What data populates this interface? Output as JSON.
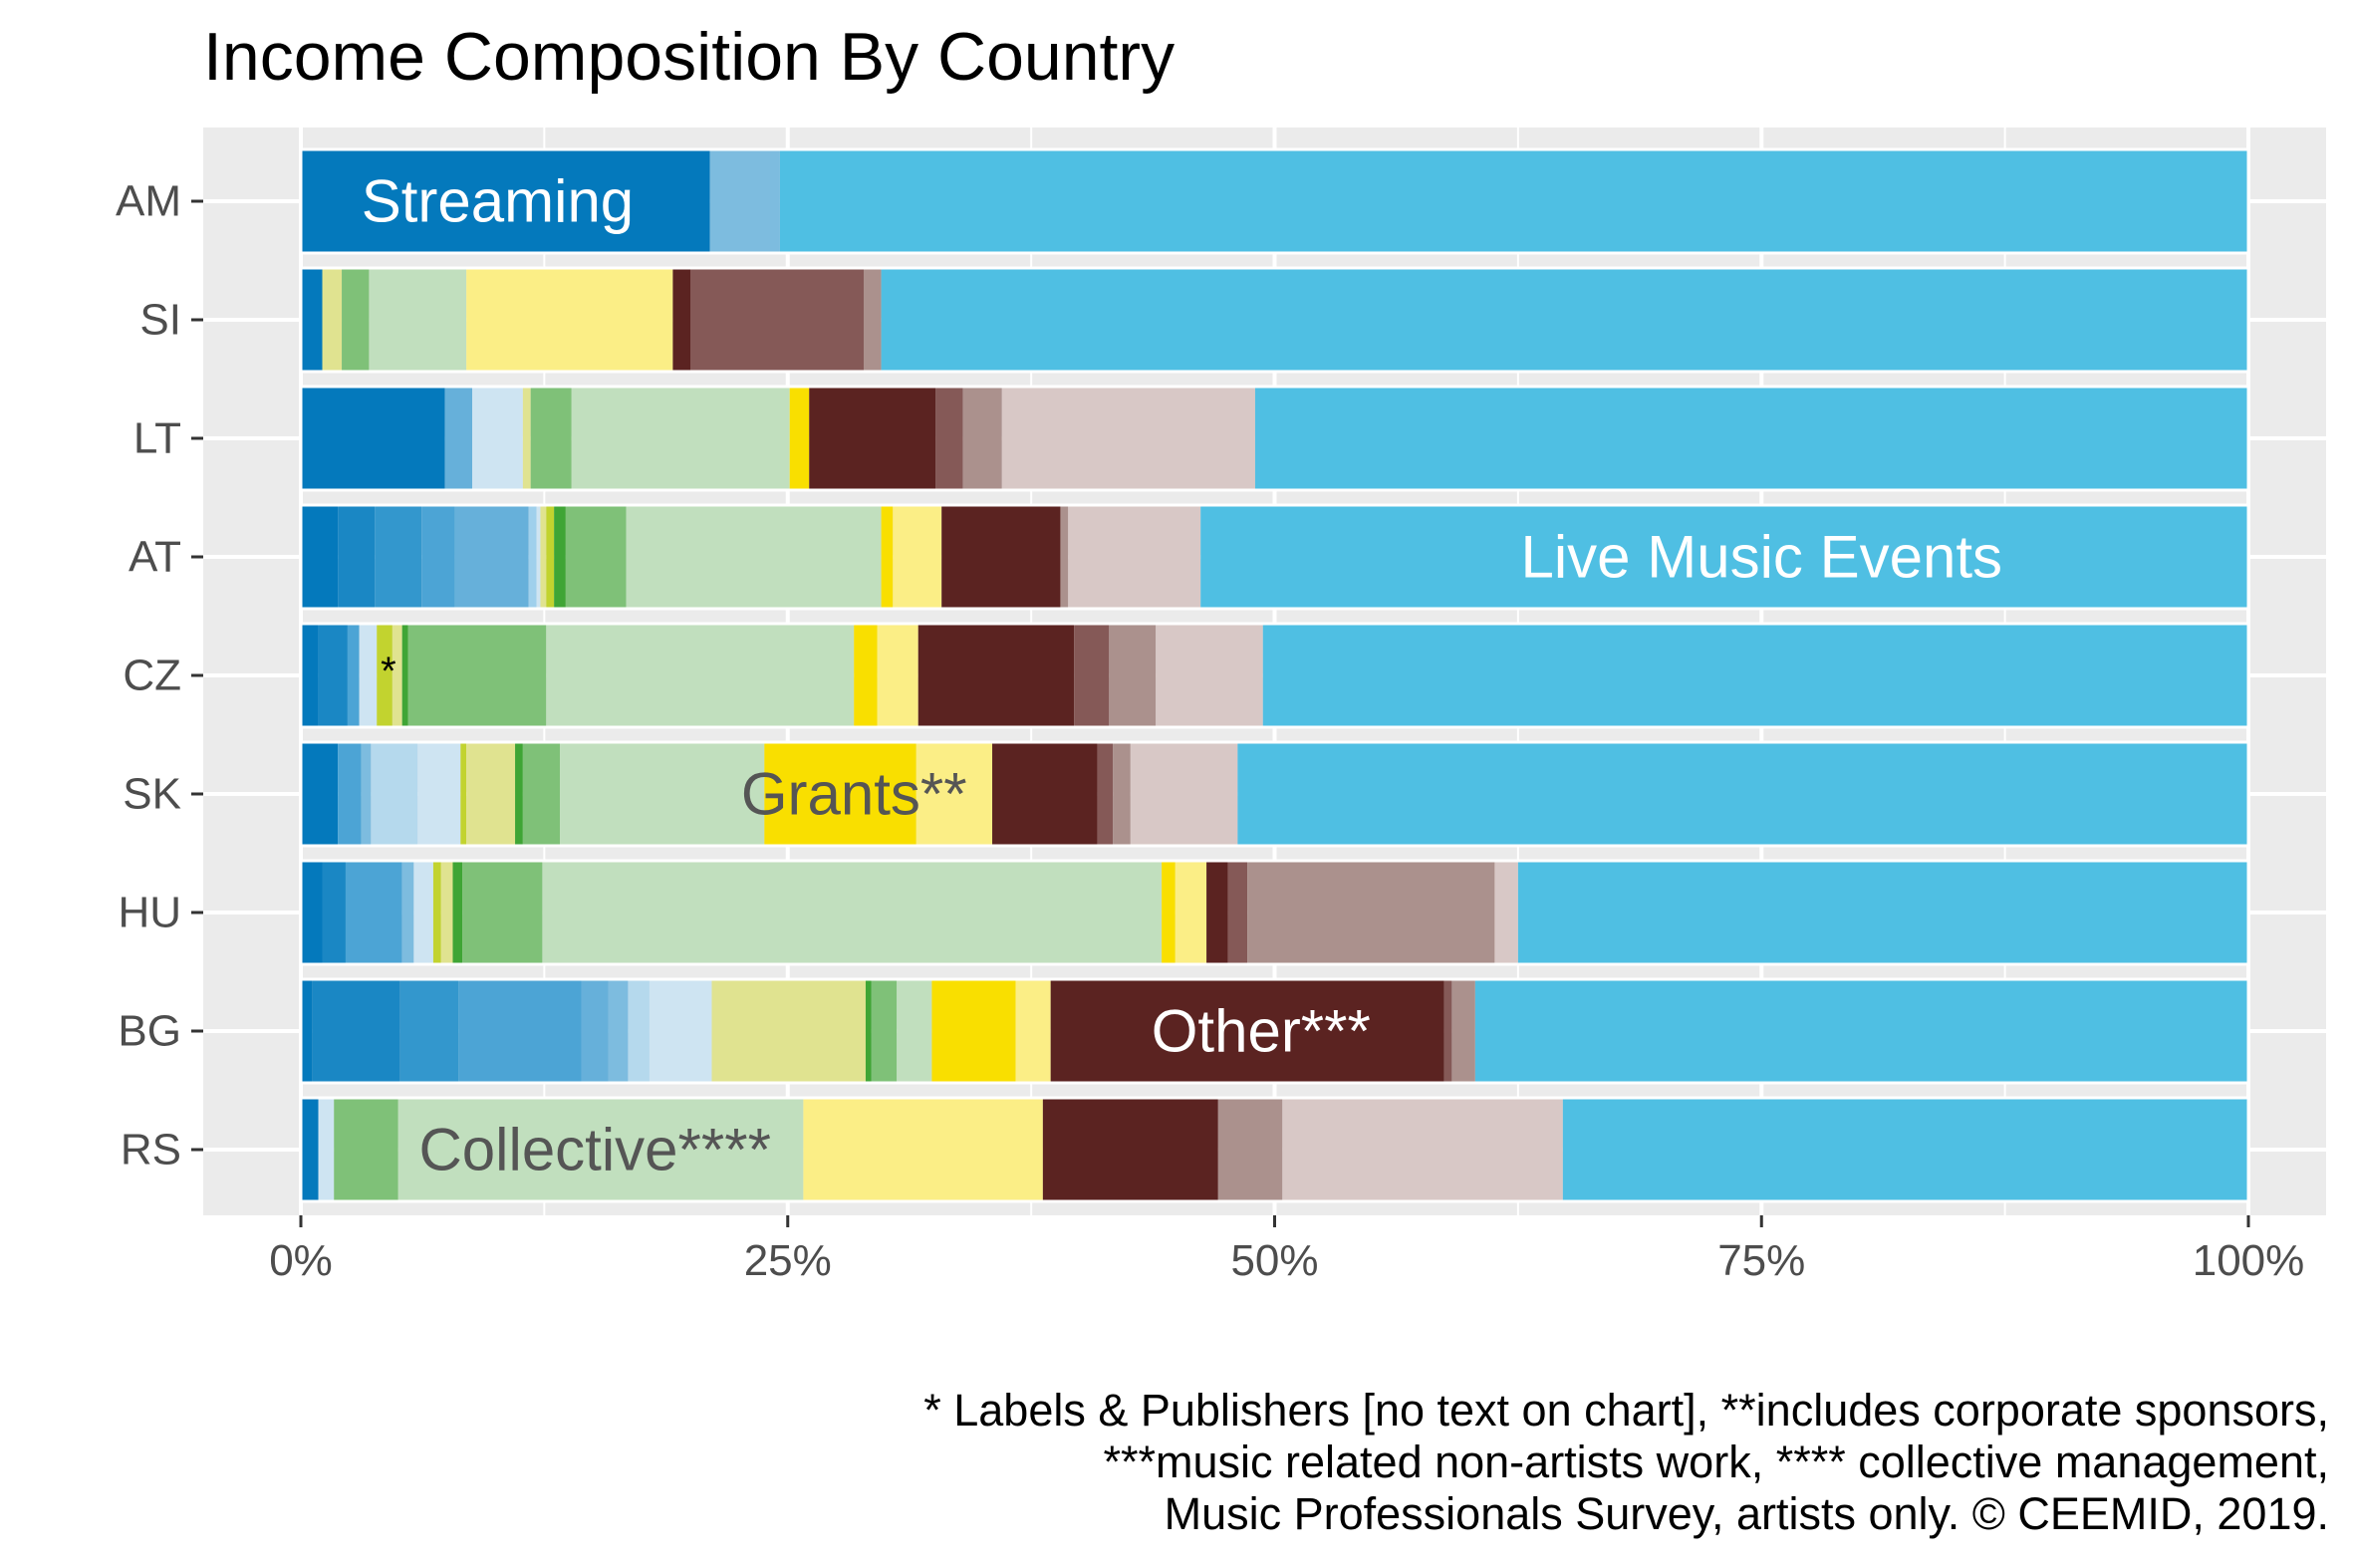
{
  "chart_data": {
    "type": "bar",
    "orientation": "horizontal",
    "stacked": true,
    "normalized": true,
    "title": "Income Composition By Country",
    "categories": [
      "AM",
      "SI",
      "LT",
      "AT",
      "CZ",
      "SK",
      "HU",
      "BG",
      "RS"
    ],
    "x_ticks": [
      "0%",
      "25%",
      "50%",
      "75%",
      "100%"
    ],
    "xlim": [
      0,
      100
    ],
    "grid": true,
    "legend": "none",
    "segments": {
      "AM": [
        {
          "start": 0,
          "end": 21,
          "color": "#0479BC"
        },
        {
          "start": 21,
          "end": 24.6,
          "color": "#7DBCDF"
        },
        {
          "start": 24.6,
          "end": 100,
          "color": "#4FBFE3"
        }
      ],
      "SI": [
        {
          "start": 0,
          "end": 1.1,
          "color": "#0479BC"
        },
        {
          "start": 1.1,
          "end": 2.1,
          "color": "#E0E390"
        },
        {
          "start": 2.1,
          "end": 3.5,
          "color": "#7FC178"
        },
        {
          "start": 3.5,
          "end": 8.5,
          "color": "#C1DFBE"
        },
        {
          "start": 8.5,
          "end": 19.1,
          "color": "#FBEE86"
        },
        {
          "start": 19.1,
          "end": 20,
          "color": "#5B2321"
        },
        {
          "start": 20,
          "end": 28.9,
          "color": "#855957"
        },
        {
          "start": 28.9,
          "end": 29.8,
          "color": "#AB918D"
        },
        {
          "start": 29.8,
          "end": 100,
          "color": "#4FBFE3"
        }
      ],
      "LT": [
        {
          "start": 0,
          "end": 7.4,
          "color": "#0479BC"
        },
        {
          "start": 7.4,
          "end": 8.8,
          "color": "#66B0DA"
        },
        {
          "start": 8.8,
          "end": 11.4,
          "color": "#CEE4F2"
        },
        {
          "start": 11.4,
          "end": 11.8,
          "color": "#E0E390"
        },
        {
          "start": 11.8,
          "end": 13.9,
          "color": "#7FC178"
        },
        {
          "start": 13.9,
          "end": 25.1,
          "color": "#C1DFBE"
        },
        {
          "start": 25.1,
          "end": 26.1,
          "color": "#F9DF00"
        },
        {
          "start": 26.1,
          "end": 32.6,
          "color": "#5B2321"
        },
        {
          "start": 32.6,
          "end": 34,
          "color": "#855957"
        },
        {
          "start": 34,
          "end": 36,
          "color": "#AB918D"
        },
        {
          "start": 36,
          "end": 49,
          "color": "#D8C8C6"
        },
        {
          "start": 49,
          "end": 100,
          "color": "#4FBFE3"
        }
      ],
      "AT": [
        {
          "start": 0,
          "end": 1.9,
          "color": "#0479BC"
        },
        {
          "start": 1.9,
          "end": 3.8,
          "color": "#1A87C4"
        },
        {
          "start": 3.8,
          "end": 6.2,
          "color": "#3397CD"
        },
        {
          "start": 6.2,
          "end": 7.9,
          "color": "#4CA4D5"
        },
        {
          "start": 7.9,
          "end": 11.7,
          "color": "#66B0DA"
        },
        {
          "start": 11.7,
          "end": 12.1,
          "color": "#9FD0EC"
        },
        {
          "start": 12.1,
          "end": 12.3,
          "color": "#CEE4F2"
        },
        {
          "start": 12.3,
          "end": 12.6,
          "color": "#E0E390"
        },
        {
          "start": 12.6,
          "end": 13,
          "color": "#C2D32F"
        },
        {
          "start": 13,
          "end": 13.6,
          "color": "#3FA535"
        },
        {
          "start": 13.6,
          "end": 16.7,
          "color": "#7FC178"
        },
        {
          "start": 16.7,
          "end": 29.8,
          "color": "#C1DFBE"
        },
        {
          "start": 29.8,
          "end": 30.4,
          "color": "#F9DF00"
        },
        {
          "start": 30.4,
          "end": 32.9,
          "color": "#FBEE86"
        },
        {
          "start": 32.9,
          "end": 39,
          "color": "#5B2321"
        },
        {
          "start": 39,
          "end": 39.4,
          "color": "#AB918D"
        },
        {
          "start": 39.4,
          "end": 46.2,
          "color": "#D8C8C6"
        },
        {
          "start": 46.2,
          "end": 100,
          "color": "#4FBFE3"
        }
      ],
      "CZ": [
        {
          "start": 0,
          "end": 0.9,
          "color": "#0479BC"
        },
        {
          "start": 0.9,
          "end": 2.4,
          "color": "#1A87C4"
        },
        {
          "start": 2.4,
          "end": 3,
          "color": "#4CA4D5"
        },
        {
          "start": 3,
          "end": 3.9,
          "color": "#CEE4F2"
        },
        {
          "start": 3.9,
          "end": 4.7,
          "color": "#C2D32F"
        },
        {
          "start": 4.7,
          "end": 5.2,
          "color": "#E0E390"
        },
        {
          "start": 5.2,
          "end": 5.5,
          "color": "#3FA535"
        },
        {
          "start": 5.5,
          "end": 12.6,
          "color": "#7FC178"
        },
        {
          "start": 12.6,
          "end": 28.4,
          "color": "#C1DFBE"
        },
        {
          "start": 28.4,
          "end": 29.6,
          "color": "#F9DF00"
        },
        {
          "start": 29.6,
          "end": 31.7,
          "color": "#FBEE86"
        },
        {
          "start": 31.7,
          "end": 39.7,
          "color": "#5B2321"
        },
        {
          "start": 39.7,
          "end": 41.5,
          "color": "#855957"
        },
        {
          "start": 41.5,
          "end": 43.9,
          "color": "#AB918D"
        },
        {
          "start": 43.9,
          "end": 49.4,
          "color": "#D8C8C6"
        },
        {
          "start": 49.4,
          "end": 100,
          "color": "#4FBFE3"
        }
      ],
      "SK": [
        {
          "start": 0,
          "end": 1.9,
          "color": "#0479BC"
        },
        {
          "start": 1.9,
          "end": 3.1,
          "color": "#4CA4D5"
        },
        {
          "start": 3.1,
          "end": 3.6,
          "color": "#7DBCDF"
        },
        {
          "start": 3.6,
          "end": 6,
          "color": "#B5D9ED"
        },
        {
          "start": 6,
          "end": 8.2,
          "color": "#CEE4F2"
        },
        {
          "start": 8.2,
          "end": 8.5,
          "color": "#C2D32F"
        },
        {
          "start": 8.5,
          "end": 11,
          "color": "#E0E390"
        },
        {
          "start": 11,
          "end": 11.4,
          "color": "#3FA535"
        },
        {
          "start": 11.4,
          "end": 13.3,
          "color": "#7FC178"
        },
        {
          "start": 13.3,
          "end": 23.8,
          "color": "#C1DFBE"
        },
        {
          "start": 23.8,
          "end": 31.6,
          "color": "#F9DF00"
        },
        {
          "start": 31.6,
          "end": 35.5,
          "color": "#FBEE86"
        },
        {
          "start": 35.5,
          "end": 40.9,
          "color": "#5B2321"
        },
        {
          "start": 40.9,
          "end": 41.7,
          "color": "#855957"
        },
        {
          "start": 41.7,
          "end": 42.6,
          "color": "#AB918D"
        },
        {
          "start": 42.6,
          "end": 48.1,
          "color": "#D8C8C6"
        },
        {
          "start": 48.1,
          "end": 100,
          "color": "#4FBFE3"
        }
      ],
      "HU": [
        {
          "start": 0,
          "end": 1.1,
          "color": "#0479BC"
        },
        {
          "start": 1.1,
          "end": 2.3,
          "color": "#1A87C4"
        },
        {
          "start": 2.3,
          "end": 5.2,
          "color": "#4CA4D5"
        },
        {
          "start": 5.2,
          "end": 5.8,
          "color": "#7DBCDF"
        },
        {
          "start": 5.8,
          "end": 6.8,
          "color": "#CEE4F2"
        },
        {
          "start": 6.8,
          "end": 7.2,
          "color": "#C2D32F"
        },
        {
          "start": 7.2,
          "end": 7.8,
          "color": "#E0E390"
        },
        {
          "start": 7.8,
          "end": 8.3,
          "color": "#3FA535"
        },
        {
          "start": 8.3,
          "end": 12.4,
          "color": "#7FC178"
        },
        {
          "start": 12.4,
          "end": 44.2,
          "color": "#C1DFBE"
        },
        {
          "start": 44.2,
          "end": 44.9,
          "color": "#F9DF00"
        },
        {
          "start": 44.9,
          "end": 46.5,
          "color": "#FBEE86"
        },
        {
          "start": 46.5,
          "end": 47.6,
          "color": "#5B2321"
        },
        {
          "start": 47.6,
          "end": 48.6,
          "color": "#855957"
        },
        {
          "start": 48.6,
          "end": 61.3,
          "color": "#AB918D"
        },
        {
          "start": 61.3,
          "end": 62.5,
          "color": "#D8C8C6"
        },
        {
          "start": 62.5,
          "end": 100,
          "color": "#4FBFE3"
        }
      ],
      "BG": [
        {
          "start": 0,
          "end": 0.6,
          "color": "#0479BC"
        },
        {
          "start": 0.6,
          "end": 5.1,
          "color": "#1A87C4"
        },
        {
          "start": 5.1,
          "end": 8.1,
          "color": "#3397CD"
        },
        {
          "start": 8.1,
          "end": 14.4,
          "color": "#4CA4D5"
        },
        {
          "start": 14.4,
          "end": 15.8,
          "color": "#66B0DA"
        },
        {
          "start": 15.8,
          "end": 16.8,
          "color": "#7DBCDF"
        },
        {
          "start": 16.8,
          "end": 17.9,
          "color": "#B5D9ED"
        },
        {
          "start": 17.9,
          "end": 21.1,
          "color": "#CEE4F2"
        },
        {
          "start": 21.1,
          "end": 29,
          "color": "#E0E390"
        },
        {
          "start": 29,
          "end": 29.3,
          "color": "#3FA535"
        },
        {
          "start": 29.3,
          "end": 30.6,
          "color": "#7FC178"
        },
        {
          "start": 30.6,
          "end": 32.4,
          "color": "#C1DFBE"
        },
        {
          "start": 32.4,
          "end": 36.7,
          "color": "#F9DF00"
        },
        {
          "start": 36.7,
          "end": 38.5,
          "color": "#FBEE86"
        },
        {
          "start": 38.5,
          "end": 58.7,
          "color": "#5B2321"
        },
        {
          "start": 58.7,
          "end": 59.1,
          "color": "#855957"
        },
        {
          "start": 59.1,
          "end": 60.3,
          "color": "#AB918D"
        },
        {
          "start": 60.3,
          "end": 100,
          "color": "#4FBFE3"
        }
      ],
      "RS": [
        {
          "start": 0,
          "end": 0.9,
          "color": "#0479BC"
        },
        {
          "start": 0.9,
          "end": 1.7,
          "color": "#CEE4F2"
        },
        {
          "start": 1.7,
          "end": 5,
          "color": "#7FC178"
        },
        {
          "start": 5,
          "end": 25.8,
          "color": "#C1DFBE"
        },
        {
          "start": 25.8,
          "end": 38.1,
          "color": "#FBEE86"
        },
        {
          "start": 38.1,
          "end": 47.1,
          "color": "#5B2321"
        },
        {
          "start": 47.1,
          "end": 50.4,
          "color": "#AB918D"
        },
        {
          "start": 50.4,
          "end": 64.8,
          "color": "#D8C8C6"
        },
        {
          "start": 64.8,
          "end": 100,
          "color": "#4FBFE3"
        }
      ]
    },
    "annotations": [
      {
        "text": "Streaming",
        "category": "AM",
        "x": 10.1,
        "color": "#ffffff"
      },
      {
        "text": "Live Music Events",
        "category": "AT",
        "x": 75,
        "color": "#ffffff"
      },
      {
        "text": "*",
        "category": "CZ",
        "x": 4.5,
        "color": "#000000"
      },
      {
        "text": "Grants**",
        "category": "SK",
        "x": 28.4,
        "color": "#555555"
      },
      {
        "text": "Other***",
        "category": "BG",
        "x": 49.3,
        "color": "#ffffff"
      },
      {
        "text": "Collective****",
        "category": "RS",
        "x": 15.1,
        "color": "#555555"
      }
    ],
    "caption": [
      "* Labels & Publishers [no text on chart], **includes corporate sponsors,",
      "***music related non-artists work, **** collective management,",
      "Music Professionals Survey, artists only. © CEEMID, 2019."
    ],
    "colors": {
      "panel_background": "#EBEBEB",
      "grid": "#ffffff",
      "axis_text": "#4D4D4D"
    }
  }
}
